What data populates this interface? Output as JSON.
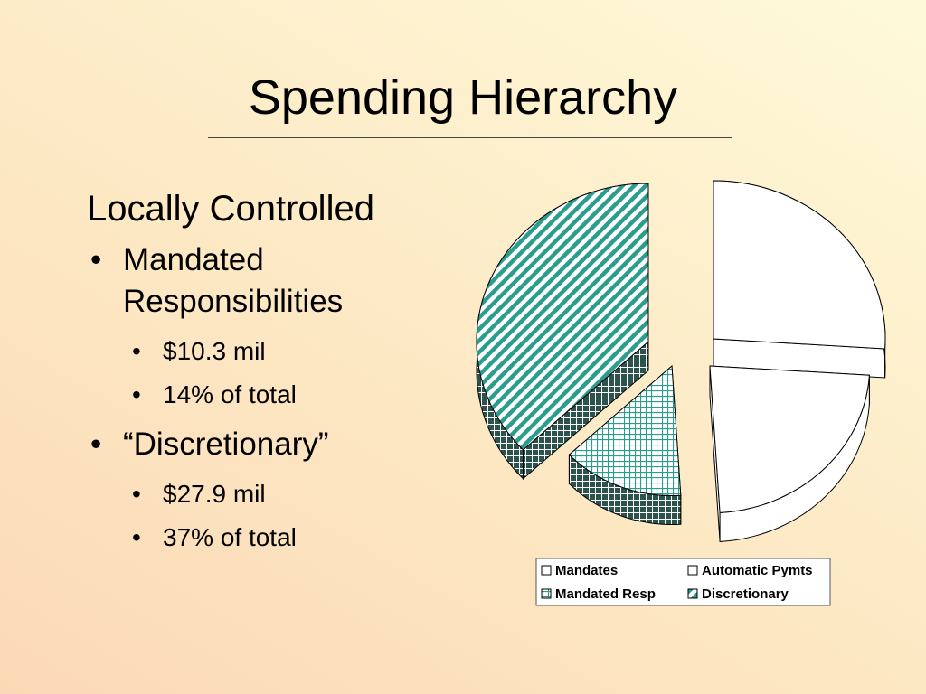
{
  "slide": {
    "title": "Spending Hierarchy",
    "heading": "Locally Controlled",
    "bullets": [
      {
        "text_line1": "Mandated",
        "text_line2": "Responsibilities",
        "subs": [
          "$10.3 mil",
          "14% of total"
        ]
      },
      {
        "text_line1": "“Discretionary”",
        "text_line2": "",
        "subs": [
          "$27.9 mil",
          "37% of total"
        ]
      }
    ]
  },
  "chart_data": {
    "type": "pie",
    "style": "3d-exploded",
    "legend_position": "bottom",
    "series": [
      {
        "name": "Mandates",
        "value": 0.26,
        "pattern": "plain",
        "color": "#ffffff"
      },
      {
        "name": "Automatic Pymts",
        "value": 0.23,
        "pattern": "plain",
        "color": "#ffffff"
      },
      {
        "name": "Mandated Resp",
        "value": 0.14,
        "pattern": "grid",
        "color": "#2a9d8f"
      },
      {
        "name": "Discretionary",
        "value": 0.37,
        "pattern": "diagonal",
        "color": "#2a9d8f"
      }
    ]
  }
}
